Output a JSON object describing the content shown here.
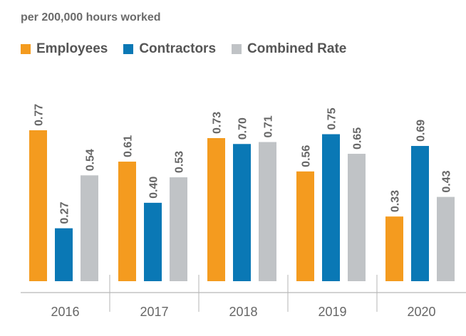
{
  "chart_data": {
    "type": "bar",
    "title": "",
    "subtitle": "per 200,000 hours worked",
    "xlabel": "",
    "ylabel": "",
    "categories": [
      "2016",
      "2017",
      "2018",
      "2019",
      "2020"
    ],
    "series": [
      {
        "name": "Employees",
        "color": "#f49b1f",
        "values": [
          0.77,
          0.61,
          0.73,
          0.56,
          0.33
        ]
      },
      {
        "name": "Contractors",
        "color": "#0a78b5",
        "values": [
          0.27,
          0.4,
          0.7,
          0.75,
          0.69
        ]
      },
      {
        "name": "Combined Rate",
        "color": "#c0c3c6",
        "values": [
          0.54,
          0.53,
          0.71,
          0.65,
          0.43
        ]
      }
    ],
    "ylim": [
      0,
      0.8
    ],
    "grid": false,
    "legend_position": "top-left",
    "value_labels": true
  }
}
